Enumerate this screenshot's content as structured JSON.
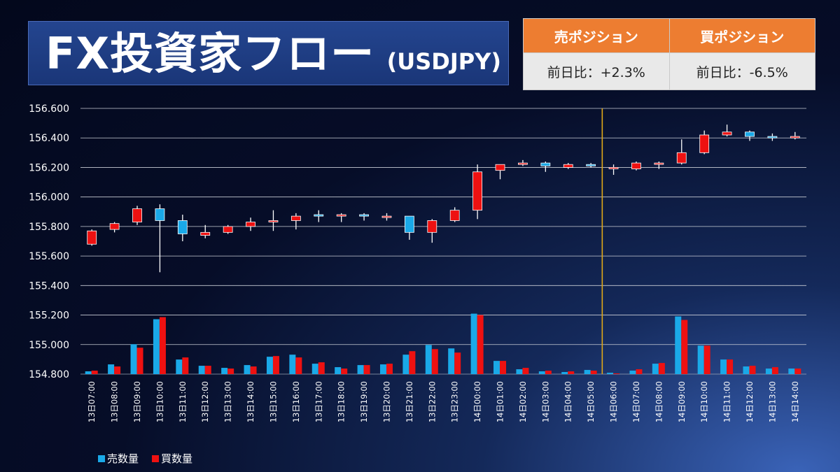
{
  "header": {
    "title": "FX投資家フロー",
    "subtitle": "(USDJPY)"
  },
  "positions": {
    "sell": {
      "label": "売ポジション",
      "value": "前日比：+2.3%"
    },
    "buy": {
      "label": "買ポジション",
      "value": "前日比：-6.5%"
    }
  },
  "colors": {
    "sell": "#1aa9e8",
    "buy": "#ee1111",
    "divider": "#e0a818",
    "header_orange": "#ed7d31"
  },
  "chart_data": {
    "type": "candlestick+bar",
    "ylim": [
      154.8,
      156.6
    ],
    "yticks": [
      "154.800",
      "155.000",
      "155.200",
      "155.400",
      "155.600",
      "155.800",
      "156.000",
      "156.200",
      "156.400",
      "156.600"
    ],
    "categories": [
      "13日07:00",
      "13日08:00",
      "13日09:00",
      "13日10:00",
      "13日11:00",
      "13日12:00",
      "13日13:00",
      "13日14:00",
      "13日15:00",
      "13日16:00",
      "13日17:00",
      "13日18:00",
      "13日19:00",
      "13日20:00",
      "13日21:00",
      "13日22:00",
      "13日23:00",
      "14日00:00",
      "14日01:00",
      "14日02:00",
      "14日03:00",
      "14日04:00",
      "14日05:00",
      "14日06:00",
      "14日07:00",
      "14日08:00",
      "14日09:00",
      "14日10:00",
      "14日11:00",
      "14日12:00",
      "14日13:00",
      "14日14:00"
    ],
    "candles": [
      {
        "o": 155.68,
        "h": 155.78,
        "l": 155.67,
        "c": 155.77
      },
      {
        "o": 155.78,
        "h": 155.83,
        "l": 155.76,
        "c": 155.82
      },
      {
        "o": 155.83,
        "h": 155.94,
        "l": 155.81,
        "c": 155.92
      },
      {
        "o": 155.92,
        "h": 155.95,
        "l": 155.49,
        "c": 155.84
      },
      {
        "o": 155.84,
        "h": 155.88,
        "l": 155.7,
        "c": 155.75
      },
      {
        "o": 155.74,
        "h": 155.81,
        "l": 155.72,
        "c": 155.76
      },
      {
        "o": 155.76,
        "h": 155.81,
        "l": 155.75,
        "c": 155.8
      },
      {
        "o": 155.8,
        "h": 155.86,
        "l": 155.77,
        "c": 155.83
      },
      {
        "o": 155.83,
        "h": 155.91,
        "l": 155.77,
        "c": 155.84
      },
      {
        "o": 155.84,
        "h": 155.89,
        "l": 155.78,
        "c": 155.87
      },
      {
        "o": 155.88,
        "h": 155.91,
        "l": 155.83,
        "c": 155.87
      },
      {
        "o": 155.87,
        "h": 155.89,
        "l": 155.83,
        "c": 155.88
      },
      {
        "o": 155.88,
        "h": 155.89,
        "l": 155.84,
        "c": 155.87
      },
      {
        "o": 155.87,
        "h": 155.89,
        "l": 155.84,
        "c": 155.87
      },
      {
        "o": 155.87,
        "h": 155.87,
        "l": 155.71,
        "c": 155.76
      },
      {
        "o": 155.76,
        "h": 155.85,
        "l": 155.69,
        "c": 155.84
      },
      {
        "o": 155.84,
        "h": 155.93,
        "l": 155.83,
        "c": 155.91
      },
      {
        "o": 155.91,
        "h": 156.22,
        "l": 155.85,
        "c": 156.17
      },
      {
        "o": 156.18,
        "h": 156.22,
        "l": 156.12,
        "c": 156.22
      },
      {
        "o": 156.22,
        "h": 156.25,
        "l": 156.21,
        "c": 156.23
      },
      {
        "o": 156.23,
        "h": 156.24,
        "l": 156.17,
        "c": 156.21
      },
      {
        "o": 156.2,
        "h": 156.23,
        "l": 156.19,
        "c": 156.22
      },
      {
        "o": 156.22,
        "h": 156.23,
        "l": 156.2,
        "c": 156.21
      },
      {
        "o": 156.2,
        "h": 156.22,
        "l": 156.15,
        "c": 156.2
      },
      {
        "o": 156.19,
        "h": 156.24,
        "l": 156.18,
        "c": 156.23
      },
      {
        "o": 156.23,
        "h": 156.24,
        "l": 156.19,
        "c": 156.23
      },
      {
        "o": 156.23,
        "h": 156.39,
        "l": 156.22,
        "c": 156.3
      },
      {
        "o": 156.3,
        "h": 156.45,
        "l": 156.29,
        "c": 156.42
      },
      {
        "o": 156.42,
        "h": 156.49,
        "l": 156.41,
        "c": 156.44
      },
      {
        "o": 156.44,
        "h": 156.45,
        "l": 156.38,
        "c": 156.41
      },
      {
        "o": 156.41,
        "h": 156.43,
        "l": 156.38,
        "c": 156.4
      },
      {
        "o": 156.4,
        "h": 156.44,
        "l": 156.39,
        "c": 156.41
      }
    ],
    "divider_index": 23,
    "volume_scale_max": 100,
    "series": [
      {
        "name": "売数量",
        "values": [
          4,
          14,
          43,
          79,
          21,
          12,
          9,
          13,
          25,
          28,
          15,
          10,
          13,
          14,
          28,
          42,
          37,
          87,
          19,
          7,
          4,
          3,
          6,
          2,
          5,
          15,
          83,
          41,
          21,
          11,
          8,
          8
        ]
      },
      {
        "name": "買数量",
        "values": [
          5,
          11,
          38,
          82,
          24,
          12,
          8,
          11,
          26,
          24,
          17,
          8,
          13,
          15,
          33,
          36,
          31,
          85,
          19,
          9,
          5,
          4,
          5,
          1,
          7,
          16,
          78,
          41,
          21,
          12,
          10,
          8
        ]
      }
    ]
  }
}
